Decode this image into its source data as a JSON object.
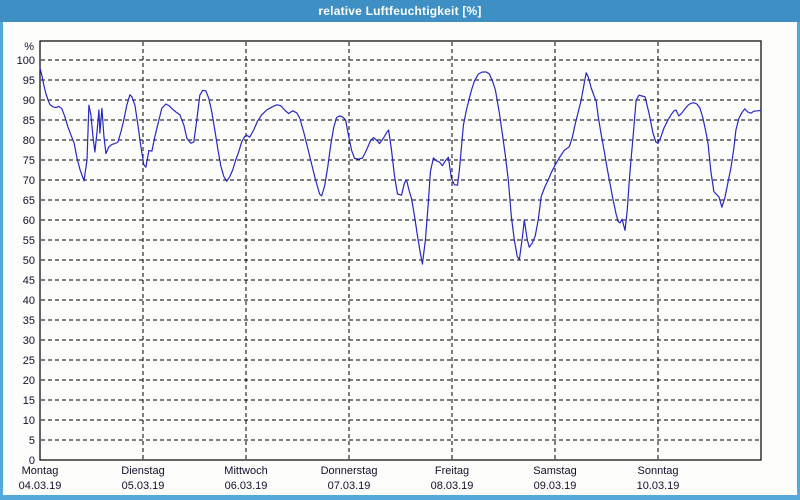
{
  "window": {
    "title": "relative Luftfeuchtigkeit [%]",
    "titlebar_color": "#3e8fc4",
    "border_color": "#55a9da",
    "background_color": "#fdfdfc"
  },
  "chart_data": {
    "type": "line",
    "title": "relative Luftfeuchtigkeit [%]",
    "ylabel": "%",
    "unit_label": "%",
    "xlabel": "",
    "ylim": [
      0,
      105
    ],
    "y_ticks": [
      0,
      5,
      10,
      15,
      20,
      25,
      30,
      35,
      40,
      45,
      50,
      55,
      60,
      65,
      70,
      75,
      80,
      85,
      90,
      95,
      100
    ],
    "grid": true,
    "grid_style": "dashed",
    "legend": "none",
    "line_color": "#2828c0",
    "x_axis": {
      "range_days": [
        0,
        7
      ],
      "days": [
        {
          "label": "Montag",
          "date": "04.03.19"
        },
        {
          "label": "Dienstag",
          "date": "05.03.19"
        },
        {
          "label": "Mittwoch",
          "date": "06.03.19"
        },
        {
          "label": "Donnerstag",
          "date": "07.03.19"
        },
        {
          "label": "Freitag",
          "date": "08.03.19"
        },
        {
          "label": "Samstag",
          "date": "09.03.19"
        },
        {
          "label": "Sonntag",
          "date": "10.03.19"
        }
      ]
    },
    "series": [
      {
        "name": "relative Luftfeuchtigkeit",
        "unit": "%",
        "points": [
          [
            0.0,
            98.0
          ],
          [
            0.019,
            96.0
          ],
          [
            0.039,
            93.5
          ],
          [
            0.058,
            91.5
          ],
          [
            0.078,
            90.0
          ],
          [
            0.097,
            88.8
          ],
          [
            0.126,
            88.3
          ],
          [
            0.155,
            88.1
          ],
          [
            0.184,
            88.4
          ],
          [
            0.213,
            87.8
          ],
          [
            0.242,
            85.8
          ],
          [
            0.272,
            83.2
          ],
          [
            0.301,
            81.2
          ],
          [
            0.33,
            79.3
          ],
          [
            0.359,
            75.5
          ],
          [
            0.388,
            72.6
          ],
          [
            0.427,
            69.8
          ],
          [
            0.456,
            75.0
          ],
          [
            0.475,
            88.7
          ],
          [
            0.494,
            86.3
          ],
          [
            0.514,
            81.0
          ],
          [
            0.533,
            77.0
          ],
          [
            0.553,
            82.0
          ],
          [
            0.572,
            87.5
          ],
          [
            0.582,
            81.7
          ],
          [
            0.601,
            87.9
          ],
          [
            0.62,
            81.0
          ],
          [
            0.64,
            76.6
          ],
          [
            0.669,
            78.3
          ],
          [
            0.698,
            78.9
          ],
          [
            0.727,
            79.1
          ],
          [
            0.756,
            79.5
          ],
          [
            0.785,
            82.0
          ],
          [
            0.814,
            85.0
          ],
          [
            0.843,
            88.7
          ],
          [
            0.873,
            91.3
          ],
          [
            0.892,
            90.8
          ],
          [
            0.921,
            88.7
          ],
          [
            0.95,
            84.0
          ],
          [
            0.979,
            78.5
          ],
          [
            1.008,
            73.8
          ],
          [
            1.028,
            73.2
          ],
          [
            1.057,
            77.4
          ],
          [
            1.086,
            77.2
          ],
          [
            1.115,
            80.8
          ],
          [
            1.154,
            85.0
          ],
          [
            1.183,
            87.9
          ],
          [
            1.222,
            89.0
          ],
          [
            1.251,
            88.6
          ],
          [
            1.28,
            87.9
          ],
          [
            1.319,
            87.0
          ],
          [
            1.358,
            86.3
          ],
          [
            1.397,
            83.7
          ],
          [
            1.426,
            80.4
          ],
          [
            1.464,
            79.2
          ],
          [
            1.493,
            79.5
          ],
          [
            1.522,
            85.0
          ],
          [
            1.551,
            91.2
          ],
          [
            1.58,
            92.4
          ],
          [
            1.61,
            92.3
          ],
          [
            1.639,
            90.4
          ],
          [
            1.668,
            87.0
          ],
          [
            1.697,
            82.5
          ],
          [
            1.726,
            77.8
          ],
          [
            1.755,
            73.5
          ],
          [
            1.784,
            70.9
          ],
          [
            1.813,
            69.7
          ],
          [
            1.842,
            70.8
          ],
          [
            1.871,
            72.5
          ],
          [
            1.9,
            75.0
          ],
          [
            1.93,
            77.1
          ],
          [
            1.959,
            79.6
          ],
          [
            1.988,
            80.9
          ],
          [
            2.007,
            81.2
          ],
          [
            2.036,
            80.7
          ],
          [
            2.075,
            82.5
          ],
          [
            2.114,
            84.8
          ],
          [
            2.153,
            86.3
          ],
          [
            2.201,
            87.5
          ],
          [
            2.249,
            88.2
          ],
          [
            2.298,
            88.8
          ],
          [
            2.337,
            88.6
          ],
          [
            2.375,
            87.5
          ],
          [
            2.414,
            86.6
          ],
          [
            2.453,
            87.3
          ],
          [
            2.492,
            86.8
          ],
          [
            2.521,
            85.5
          ],
          [
            2.56,
            82.0
          ],
          [
            2.599,
            78.0
          ],
          [
            2.637,
            74.0
          ],
          [
            2.676,
            70.0
          ],
          [
            2.715,
            66.5
          ],
          [
            2.734,
            66.0
          ],
          [
            2.763,
            68.5
          ],
          [
            2.792,
            73.0
          ],
          [
            2.821,
            78.5
          ],
          [
            2.85,
            83.0
          ],
          [
            2.879,
            85.6
          ],
          [
            2.908,
            86.0
          ],
          [
            2.938,
            85.8
          ],
          [
            2.967,
            85.0
          ],
          [
            2.996,
            81.0
          ],
          [
            3.025,
            77.4
          ],
          [
            3.054,
            75.4
          ],
          [
            3.093,
            75.2
          ],
          [
            3.132,
            75.5
          ],
          [
            3.17,
            77.5
          ],
          [
            3.209,
            79.8
          ],
          [
            3.238,
            80.6
          ],
          [
            3.267,
            80.0
          ],
          [
            3.296,
            79.1
          ],
          [
            3.335,
            80.5
          ],
          [
            3.364,
            81.8
          ],
          [
            3.384,
            82.5
          ],
          [
            3.413,
            77.5
          ],
          [
            3.442,
            71.0
          ],
          [
            3.471,
            66.5
          ],
          [
            3.51,
            66.2
          ],
          [
            3.539,
            69.3
          ],
          [
            3.558,
            70.0
          ],
          [
            3.587,
            67.0
          ],
          [
            3.607,
            65.4
          ],
          [
            3.636,
            61.0
          ],
          [
            3.665,
            56.0
          ],
          [
            3.694,
            51.5
          ],
          [
            3.713,
            49.0
          ],
          [
            3.742,
            55.0
          ],
          [
            3.771,
            64.6
          ],
          [
            3.79,
            72.1
          ],
          [
            3.819,
            75.5
          ],
          [
            3.849,
            74.8
          ],
          [
            3.878,
            74.5
          ],
          [
            3.907,
            73.6
          ],
          [
            3.936,
            74.8
          ],
          [
            3.965,
            75.7
          ],
          [
            3.994,
            70.4
          ],
          [
            4.023,
            68.8
          ],
          [
            4.053,
            68.7
          ],
          [
            4.072,
            72.5
          ],
          [
            4.111,
            83.7
          ],
          [
            4.14,
            87.5
          ],
          [
            4.16,
            89.6
          ],
          [
            4.189,
            92.5
          ],
          [
            4.218,
            94.8
          ],
          [
            4.256,
            96.5
          ],
          [
            4.295,
            97.0
          ],
          [
            4.334,
            97.0
          ],
          [
            4.363,
            96.5
          ],
          [
            4.392,
            94.8
          ],
          [
            4.421,
            92.5
          ],
          [
            4.46,
            86.7
          ],
          [
            4.489,
            81.5
          ],
          [
            4.518,
            76.0
          ],
          [
            4.547,
            70.0
          ],
          [
            4.576,
            61.0
          ],
          [
            4.605,
            55.0
          ],
          [
            4.634,
            50.8
          ],
          [
            4.654,
            50.2
          ],
          [
            4.683,
            55.5
          ],
          [
            4.702,
            60.0
          ],
          [
            4.731,
            55.0
          ],
          [
            4.75,
            53.2
          ],
          [
            4.779,
            54.2
          ],
          [
            4.808,
            56.0
          ],
          [
            4.837,
            60.0
          ],
          [
            4.866,
            65.9
          ],
          [
            4.905,
            68.5
          ],
          [
            4.934,
            70.0
          ],
          [
            4.963,
            71.8
          ],
          [
            4.992,
            73.3
          ],
          [
            5.041,
            75.5
          ],
          [
            5.089,
            77.4
          ],
          [
            5.138,
            78.3
          ],
          [
            5.167,
            80.5
          ],
          [
            5.196,
            84.0
          ],
          [
            5.225,
            87.0
          ],
          [
            5.254,
            90.0
          ],
          [
            5.283,
            94.0
          ],
          [
            5.303,
            96.8
          ],
          [
            5.322,
            95.8
          ],
          [
            5.351,
            93.0
          ],
          [
            5.38,
            91.0
          ],
          [
            5.4,
            89.7
          ],
          [
            5.419,
            85.9
          ],
          [
            5.448,
            81.5
          ],
          [
            5.477,
            77.4
          ],
          [
            5.506,
            73.0
          ],
          [
            5.535,
            69.0
          ],
          [
            5.564,
            65.0
          ],
          [
            5.593,
            61.5
          ],
          [
            5.613,
            59.6
          ],
          [
            5.632,
            59.3
          ],
          [
            5.651,
            60.2
          ],
          [
            5.68,
            57.4
          ],
          [
            5.7,
            62.0
          ],
          [
            5.719,
            69.2
          ],
          [
            5.738,
            75.0
          ],
          [
            5.758,
            80.9
          ],
          [
            5.787,
            90.0
          ],
          [
            5.816,
            91.2
          ],
          [
            5.845,
            91.0
          ],
          [
            5.874,
            90.8
          ],
          [
            5.913,
            86.7
          ],
          [
            5.951,
            81.7
          ],
          [
            5.98,
            79.5
          ],
          [
            6.0,
            79.2
          ],
          [
            6.029,
            80.8
          ],
          [
            6.058,
            83.0
          ],
          [
            6.097,
            85.0
          ],
          [
            6.126,
            86.3
          ],
          [
            6.155,
            87.3
          ],
          [
            6.174,
            87.5
          ],
          [
            6.203,
            86.0
          ],
          [
            6.233,
            86.8
          ],
          [
            6.262,
            87.8
          ],
          [
            6.291,
            88.7
          ],
          [
            6.32,
            89.2
          ],
          [
            6.349,
            89.3
          ],
          [
            6.378,
            89.0
          ],
          [
            6.407,
            88.0
          ],
          [
            6.436,
            85.5
          ],
          [
            6.465,
            82.0
          ],
          [
            6.485,
            79.2
          ],
          [
            6.514,
            72.1
          ],
          [
            6.543,
            67.1
          ],
          [
            6.572,
            66.3
          ],
          [
            6.591,
            65.8
          ],
          [
            6.62,
            63.2
          ],
          [
            6.649,
            65.5
          ],
          [
            6.678,
            69.2
          ],
          [
            6.708,
            73.0
          ],
          [
            6.737,
            78.0
          ],
          [
            6.756,
            82.5
          ],
          [
            6.785,
            85.4
          ],
          [
            6.814,
            86.8
          ],
          [
            6.843,
            87.8
          ],
          [
            6.872,
            87.0
          ],
          [
            6.901,
            86.7
          ],
          [
            6.93,
            87.2
          ],
          [
            6.969,
            87.3
          ],
          [
            6.998,
            87.4
          ]
        ]
      }
    ]
  }
}
